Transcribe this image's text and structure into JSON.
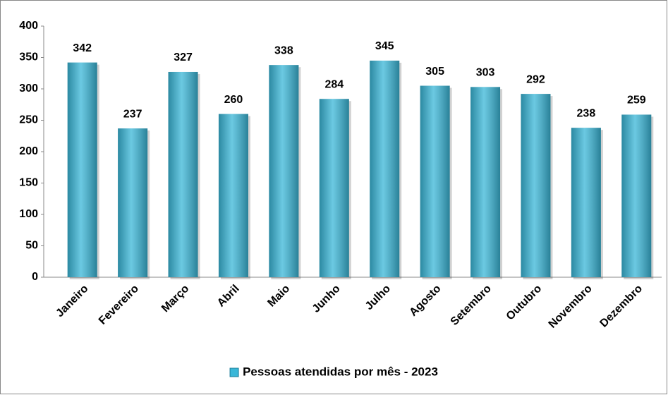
{
  "chart_data": {
    "type": "bar",
    "categories": [
      "Janeiro",
      "Fevereiro",
      "Março",
      "Abril",
      "Maio",
      "Junho",
      "Julho",
      "Agosto",
      "Setembro",
      "Outubro",
      "Novembro",
      "Dezembro"
    ],
    "series": [
      {
        "name": "Pessoas atendidas por mês - 2023",
        "color": "#3ab7d8",
        "values": [
          342,
          237,
          327,
          260,
          338,
          284,
          345,
          305,
          303,
          292,
          238,
          259
        ]
      }
    ],
    "ylim": [
      0,
      400
    ],
    "yticks": [
      0,
      50,
      100,
      150,
      200,
      250,
      300,
      350,
      400
    ],
    "grid": false,
    "legend": "bottom"
  }
}
